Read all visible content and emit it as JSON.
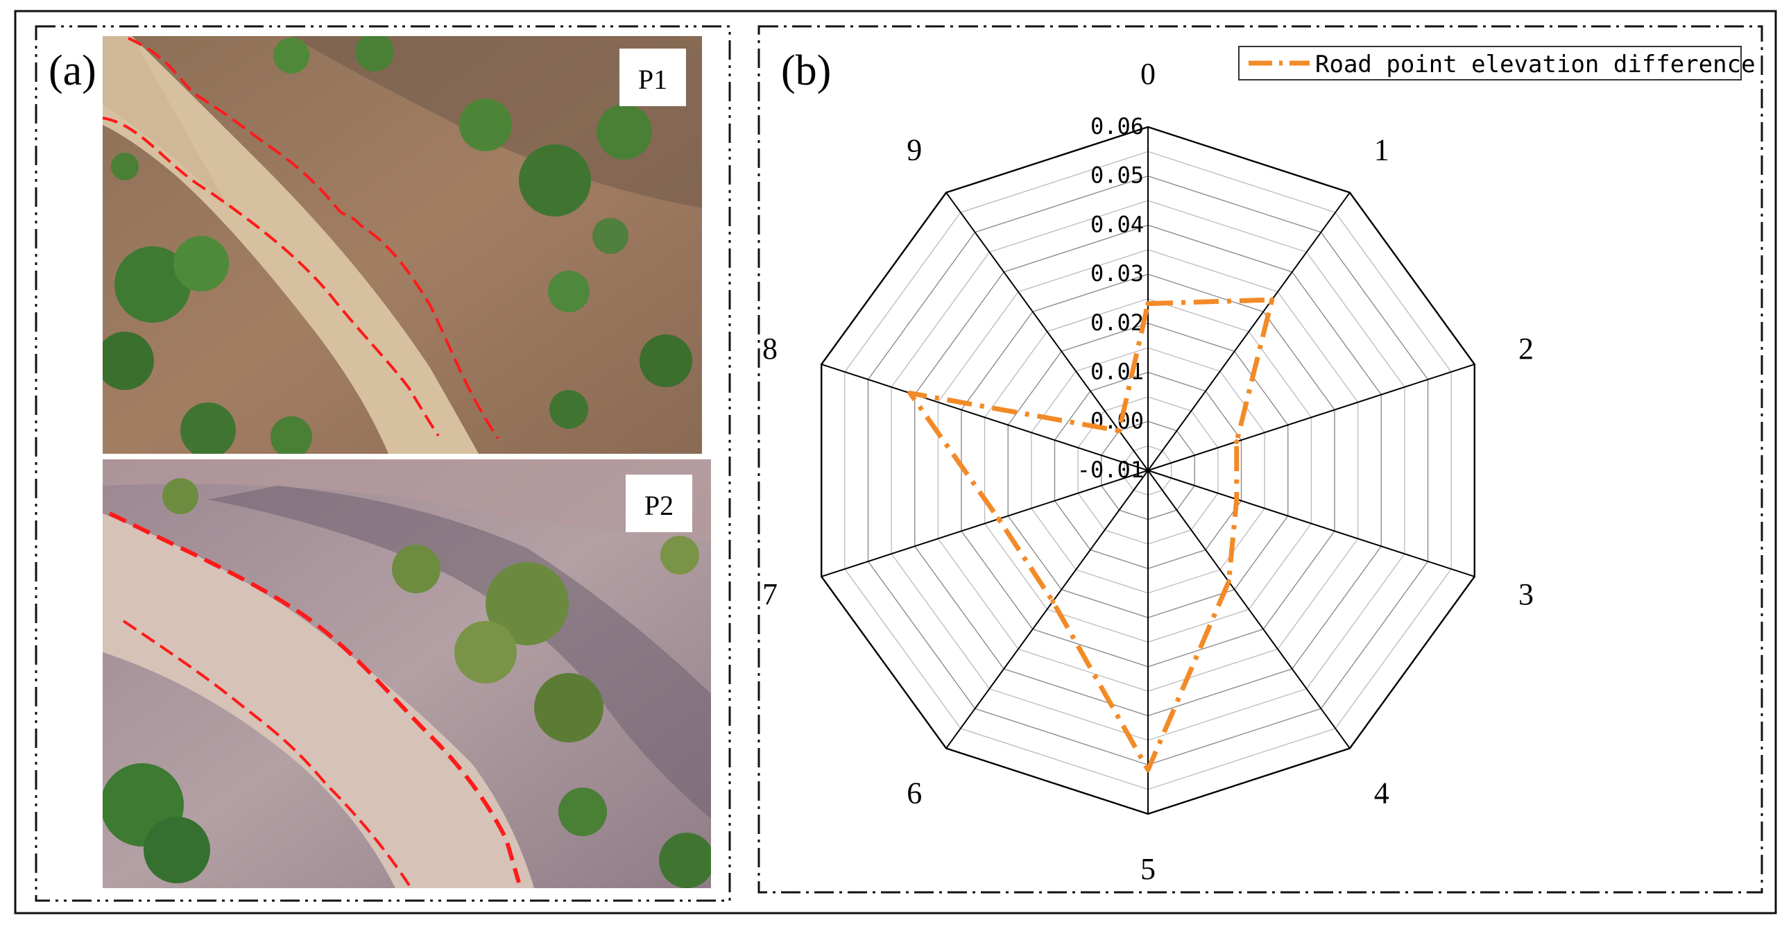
{
  "panel_a": {
    "label": "(a)",
    "photo_top_label": "P1",
    "photo_bottom_label": "P2"
  },
  "panel_b": {
    "label": "(b)"
  },
  "colors": {
    "series": "#F28A27",
    "road_edge": "#FF1A1A",
    "frame": "#111111",
    "grid": "#8C8C8C",
    "axis": "#000000"
  },
  "chart_data": {
    "type": "radar",
    "title": "",
    "categories": [
      "0",
      "1",
      "2",
      "3",
      "4",
      "5",
      "6",
      "7",
      "8",
      "9"
    ],
    "radial_ticks": [
      "-0.01",
      "0.00",
      "0.01",
      "0.02",
      "0.03",
      "0.04",
      "0.05",
      "0.06"
    ],
    "rlim": [
      -0.01,
      0.06
    ],
    "grid": true,
    "legend_position": "top-right",
    "series": [
      {
        "name": "Road point elevation difference",
        "values": [
          0.024,
          0.033,
          0.009,
          0.009,
          0.018,
          0.051,
          0.023,
          0.022,
          0.041,
          0.0
        ]
      }
    ]
  }
}
